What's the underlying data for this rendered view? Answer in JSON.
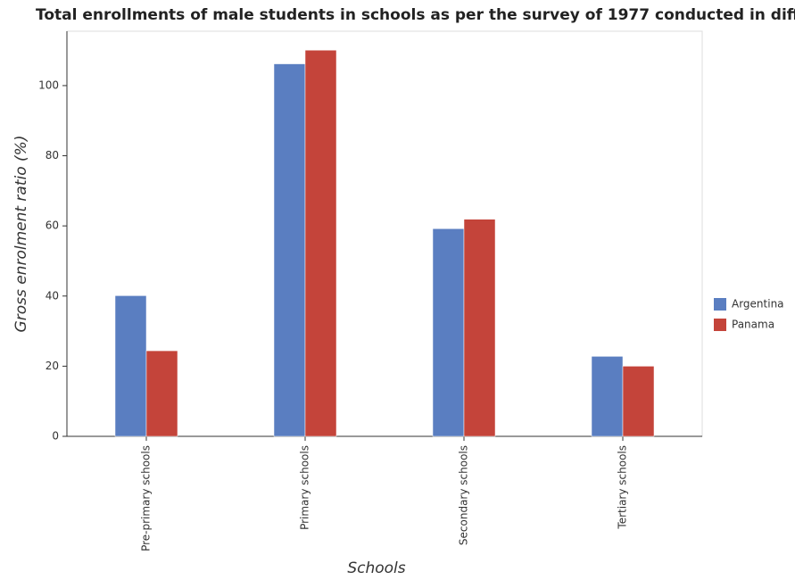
{
  "chart_data": {
    "type": "bar",
    "title": "Total enrollments of male students in schools as per the survey of 1977 conducted in different cou",
    "x_label": "Schools",
    "y_label": "Gross enrolment ratio (%)",
    "categories": [
      "Pre-primary schools",
      "Primary schools",
      "Secondary schools",
      "Tertiary schools"
    ],
    "series": [
      {
        "name": "Argentina",
        "color": "#5a7ec1",
        "values": [
          40.1,
          106.2,
          59.2,
          22.8
        ]
      },
      {
        "name": "Panama",
        "color": "#c4443a",
        "values": [
          24.4,
          110.1,
          61.9,
          20.0
        ]
      }
    ],
    "ylim": [
      0,
      115.5
    ],
    "yticks": [
      0,
      20,
      40,
      60,
      80,
      100
    ],
    "legend": "right"
  }
}
